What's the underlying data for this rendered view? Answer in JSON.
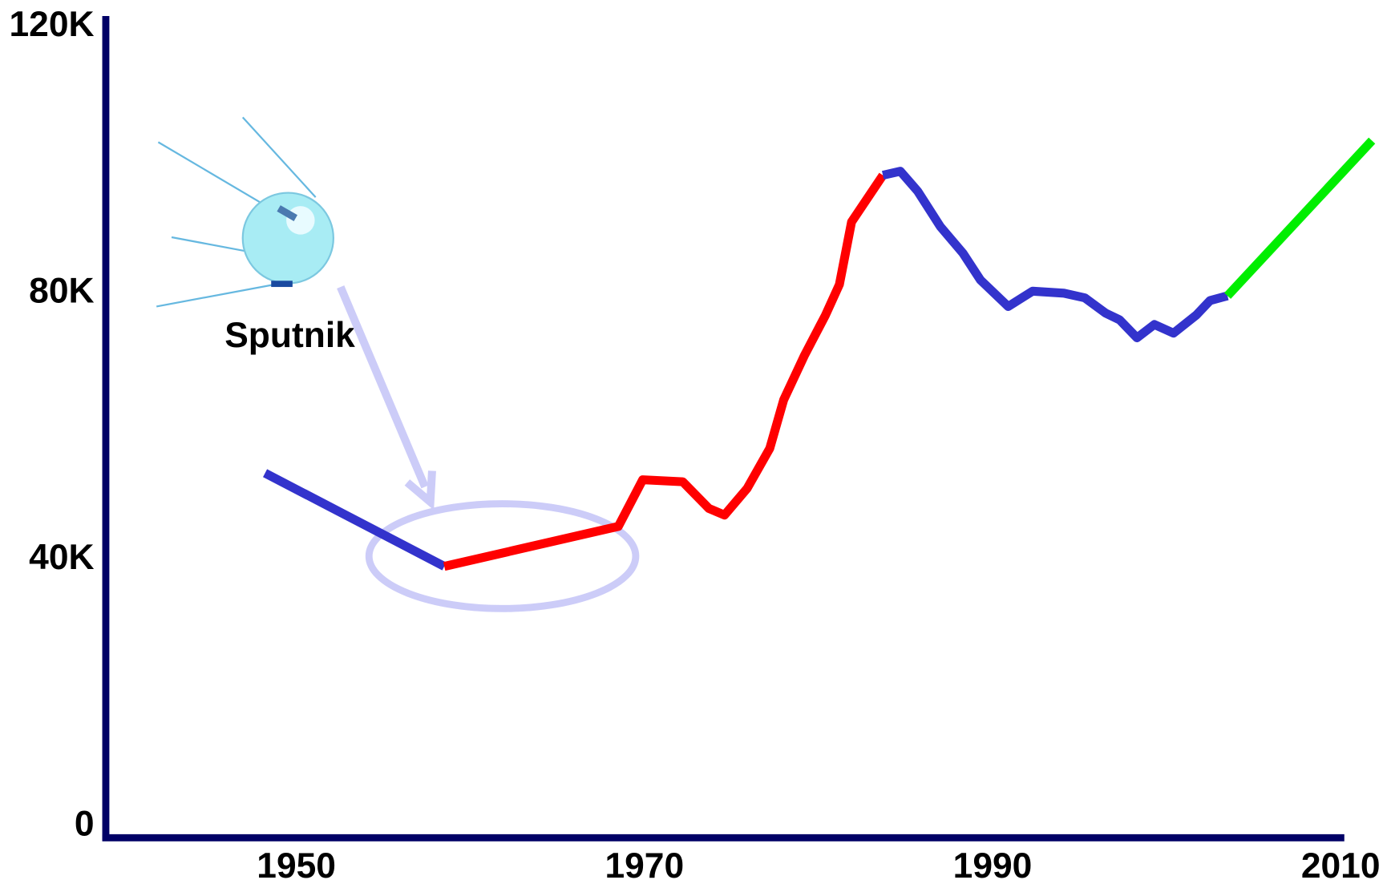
{
  "chart_data": {
    "type": "line",
    "annotations": [
      "Sputnik"
    ],
    "xlim": [
      1939,
      2012
    ],
    "xticks": [
      1950,
      1970,
      1990,
      2010
    ],
    "ylim": [
      0,
      120000
    ],
    "yticks": [
      {
        "value": 0,
        "label": "0"
      },
      {
        "value": 40000,
        "label": "40K"
      },
      {
        "value": 80000,
        "label": "80K"
      },
      {
        "value": 120000,
        "label": "120K"
      }
    ],
    "series": [
      {
        "color": "#3333cc",
        "x": [
          1948.2,
          1958.5
        ],
        "values": [
          53000,
          39000
        ]
      },
      {
        "color": "#ff0000",
        "x": [
          1958.5,
          1968.5,
          1969.9,
          1972.2,
          1973.7,
          1974.6,
          1975.9,
          1977.2,
          1978,
          1979.2,
          1980.4,
          1981.2,
          1981.9,
          1983.7
        ],
        "values": [
          39000,
          45000,
          52000,
          51700,
          47700,
          46700,
          50700,
          56700,
          64000,
          70700,
          76700,
          81300,
          90700,
          97700
        ]
      },
      {
        "color": "#3333cc",
        "x": [
          1983.7,
          1984.7,
          1985.7,
          1987,
          1988.3,
          1989.3,
          1990.9,
          1992.3,
          1994.1,
          1995.3,
          1996.5,
          1997.3,
          1998.3,
          1999.3,
          2000.4,
          2001.7,
          2002.5,
          2003.5
        ],
        "values": [
          97700,
          98300,
          95300,
          90000,
          86000,
          82000,
          78000,
          80300,
          80000,
          79300,
          77000,
          76000,
          73300,
          75300,
          74000,
          76700,
          78900,
          79600
        ]
      },
      {
        "color": "#00ee00",
        "x": [
          2003.5,
          2011.8
        ],
        "values": [
          79600,
          102900
        ]
      }
    ]
  }
}
